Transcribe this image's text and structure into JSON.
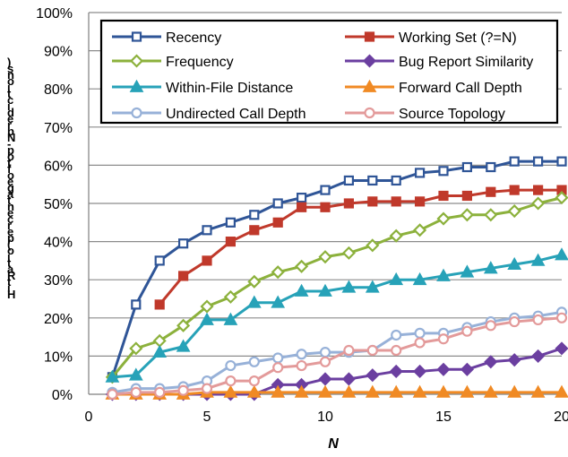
{
  "chart_data": {
    "type": "line",
    "xlabel": "N",
    "ylabel": "Hit Ratio (percentage of top-N predictions)",
    "xlim": [
      0,
      20
    ],
    "ylim": [
      0,
      100
    ],
    "xticks": [
      "0",
      "5",
      "10",
      "15",
      "20"
    ],
    "yticks": [
      "0%",
      "10%",
      "20%",
      "30%",
      "40%",
      "50%",
      "60%",
      "70%",
      "80%",
      "90%",
      "100%"
    ],
    "grid": "horizontal",
    "legend_position": "top",
    "series": [
      {
        "name": "Recency",
        "color": "#2f5597",
        "marker": "square",
        "x": [
          1,
          2,
          3,
          4,
          5,
          6,
          7,
          8,
          9,
          10,
          11,
          12,
          13,
          14,
          15,
          16,
          17,
          18,
          19,
          20
        ],
        "y": [
          4.5,
          23.5,
          35,
          39.5,
          43,
          45,
          47,
          50,
          51.5,
          53.5,
          56,
          56,
          56,
          58,
          58.5,
          59.5,
          59.5,
          61,
          61,
          61
        ]
      },
      {
        "name": "Working Set (?=N)",
        "color": "#c0392b",
        "marker": "square",
        "x": [
          3,
          4,
          5,
          6,
          7,
          8,
          9,
          10,
          11,
          12,
          13,
          14,
          15,
          16,
          17,
          18,
          19,
          20
        ],
        "y": [
          23.5,
          31,
          35,
          40,
          43,
          45,
          49,
          49,
          50,
          50.5,
          50.5,
          50.5,
          52,
          52,
          53,
          53.5,
          53.5,
          53.5
        ]
      },
      {
        "name": "Frequency",
        "color": "#8cb13c",
        "marker": "diamond",
        "x": [
          1,
          2,
          3,
          4,
          5,
          6,
          7,
          8,
          9,
          10,
          11,
          12,
          13,
          14,
          15,
          16,
          17,
          18,
          19,
          20
        ],
        "y": [
          4.5,
          12,
          14,
          18,
          23,
          25.5,
          29.5,
          32,
          33.5,
          36,
          37,
          39,
          41.5,
          43,
          46,
          47,
          47,
          48,
          50,
          51.5
        ]
      },
      {
        "name": "Bug Report Similarity",
        "color": "#6b3fa0",
        "marker": "diamond",
        "x": [
          1,
          2,
          3,
          4,
          5,
          6,
          7,
          8,
          9,
          10,
          11,
          12,
          13,
          14,
          15,
          16,
          17,
          18,
          19,
          20
        ],
        "y": [
          0,
          0,
          0,
          0,
          0,
          0,
          0,
          2.5,
          2.5,
          4,
          4,
          5,
          6,
          6,
          6.5,
          6.5,
          8.5,
          9,
          10,
          12
        ]
      },
      {
        "name": "Within-File Distance",
        "color": "#27a2b8",
        "marker": "triangle",
        "x": [
          1,
          2,
          3,
          4,
          5,
          6,
          7,
          8,
          9,
          10,
          11,
          12,
          13,
          14,
          15,
          16,
          17,
          18,
          19,
          20
        ],
        "y": [
          4.5,
          5,
          11,
          12.5,
          19.5,
          19.5,
          24,
          24,
          27,
          27,
          28,
          28,
          30,
          30,
          31,
          32,
          33,
          34,
          35,
          36.5
        ]
      },
      {
        "name": "Forward Call Depth",
        "color": "#f08a24",
        "marker": "triangle",
        "x": [
          1,
          2,
          3,
          4,
          5,
          6,
          7,
          8,
          9,
          10,
          11,
          12,
          13,
          14,
          15,
          16,
          17,
          18,
          19,
          20
        ],
        "y": [
          0,
          0,
          0,
          0,
          0.5,
          0.5,
          0.5,
          0.5,
          0.5,
          0.5,
          0.5,
          0.5,
          0.5,
          0.5,
          0.5,
          0.5,
          0.5,
          0.5,
          0.5,
          0.5
        ]
      },
      {
        "name": "Undirected Call Depth",
        "color": "#97b1d8",
        "marker": "circle",
        "x": [
          1,
          2,
          3,
          4,
          5,
          6,
          7,
          8,
          9,
          10,
          11,
          12,
          13,
          14,
          15,
          16,
          17,
          18,
          19,
          20
        ],
        "y": [
          0.5,
          1.5,
          1.5,
          2,
          3.5,
          7.5,
          8.5,
          9.5,
          10.5,
          11,
          11,
          11.5,
          15.5,
          16,
          16,
          17.5,
          19,
          20,
          20.5,
          21.5
        ]
      },
      {
        "name": "Source Topology",
        "color": "#e39a9a",
        "marker": "circle",
        "x": [
          1,
          2,
          3,
          4,
          5,
          6,
          7,
          8,
          9,
          10,
          11,
          12,
          13,
          14,
          15,
          16,
          17,
          18,
          19,
          20
        ],
        "y": [
          0,
          0.5,
          0.5,
          1,
          1.5,
          3.5,
          3.5,
          7,
          7.5,
          8.5,
          11.5,
          11.5,
          11.5,
          13.5,
          14.5,
          16.5,
          18,
          19,
          19.5,
          20
        ]
      }
    ]
  }
}
